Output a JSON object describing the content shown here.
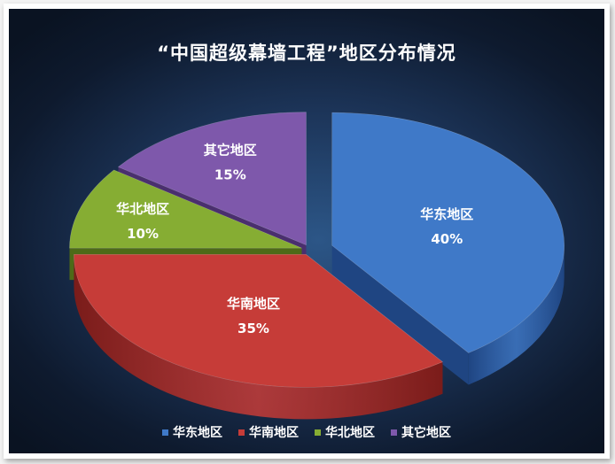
{
  "chart_data": {
    "type": "pie",
    "title": "“中国超级幕墙工程”地区分布情况",
    "slices": [
      {
        "name": "华东地区",
        "value": 40,
        "label": "40%",
        "color": "#3f79c8",
        "side_color": "#1f4582"
      },
      {
        "name": "华南地区",
        "value": 35,
        "label": "35%",
        "color": "#c63c38",
        "side_color": "#7a1c1a"
      },
      {
        "name": "华北地区",
        "value": 10,
        "label": "10%",
        "color": "#86ad33",
        "side_color": "#4d6a18"
      },
      {
        "name": "其它地区",
        "value": 15,
        "label": "15%",
        "color": "#7e58ab",
        "side_color": "#4a2f6e"
      }
    ],
    "legend_position": "bottom"
  }
}
